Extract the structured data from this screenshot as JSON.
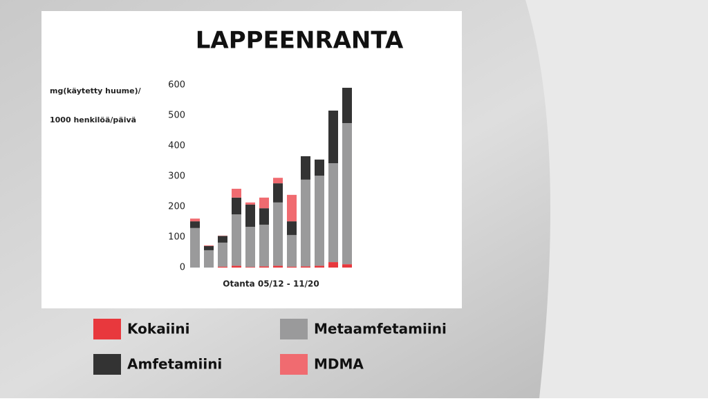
{
  "chart_data": {
    "type": "stacked-bar",
    "title": "LAPPEENRANTA",
    "ylabel": [
      "mg(käytetty huume)/",
      "1000 henkilöä/päivä"
    ],
    "xlabel": "Otanta 05/12 - 11/20",
    "categories": [
      null,
      null,
      null,
      null,
      null,
      null,
      null,
      null,
      null,
      null,
      null,
      null
    ],
    "series": [
      {
        "name": "Kokaiini",
        "color": "#e8383d",
        "values": [
          0,
          0,
          3,
          6,
          2,
          4,
          6,
          3,
          4,
          6,
          18,
          11
        ]
      },
      {
        "name": "Metaamfetamiini",
        "color": "#9a9a9b",
        "values": [
          130,
          57,
          79,
          169,
          132,
          137,
          208,
          104,
          285,
          296,
          325,
          464
        ]
      },
      {
        "name": "Amfetamiini",
        "color": "#333333",
        "values": [
          22,
          14,
          22,
          55,
          73,
          54,
          63,
          45,
          77,
          53,
          173,
          116
        ]
      },
      {
        "name": "MDMA",
        "color": "#f06b70",
        "values": [
          9,
          2,
          1,
          29,
          7,
          35,
          18,
          87,
          0,
          0,
          0,
          0
        ]
      }
    ],
    "ylim": [
      0,
      600
    ],
    "yticks": [
      0,
      100,
      200,
      300,
      400,
      500,
      600
    ],
    "grid": false
  }
}
